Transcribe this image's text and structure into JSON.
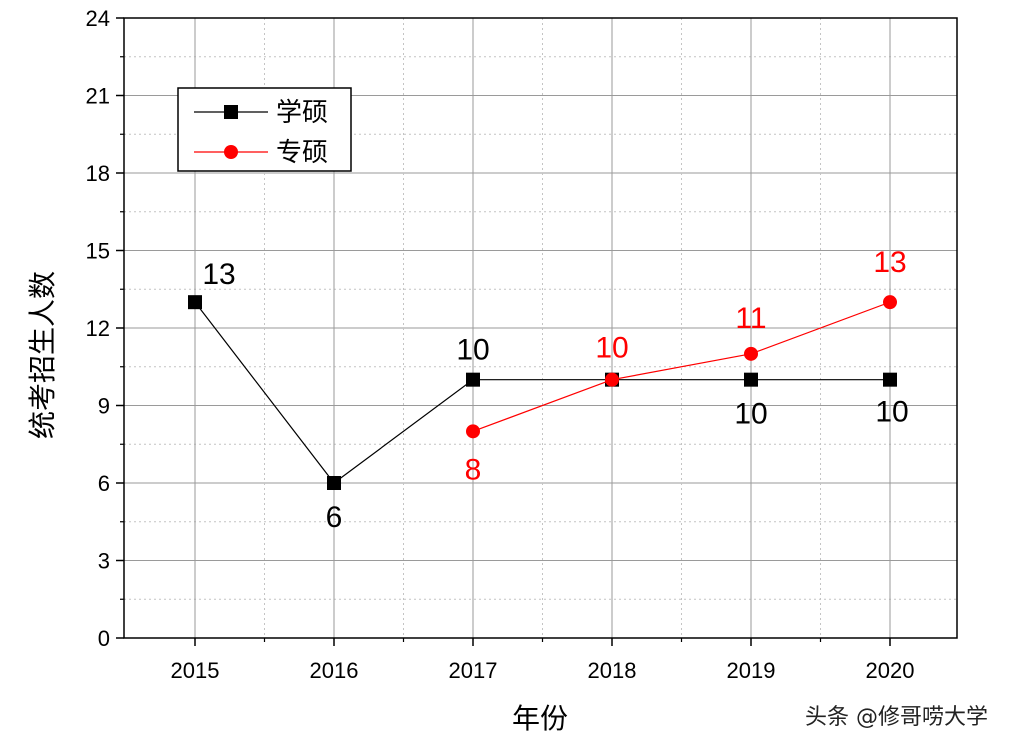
{
  "chart_data": {
    "type": "line",
    "title": "",
    "xlabel": "年份",
    "ylabel": "统考招生人数",
    "categories": [
      "2015",
      "2016",
      "2017",
      "2018",
      "2019",
      "2020"
    ],
    "ylim": [
      0,
      24
    ],
    "yticks": [
      0,
      3,
      6,
      9,
      12,
      15,
      18,
      21,
      24
    ],
    "grid": true,
    "legend_position": "top-left",
    "series": [
      {
        "name": "学硕",
        "color": "#000000",
        "marker": "square",
        "values": [
          13,
          6,
          10,
          10,
          10,
          10
        ],
        "labels": [
          "13",
          "6",
          "10",
          "",
          "10",
          "10"
        ]
      },
      {
        "name": "专硕",
        "color": "#ff0000",
        "marker": "circle",
        "values": [
          null,
          null,
          8,
          10,
          11,
          13
        ],
        "labels": [
          "",
          "",
          "8",
          "10",
          "11",
          "13"
        ]
      }
    ]
  },
  "watermark": "头条 @修哥唠大学"
}
